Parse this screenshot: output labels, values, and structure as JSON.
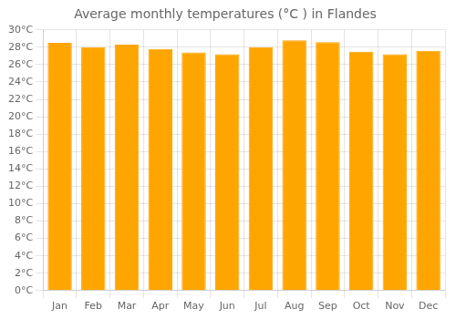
{
  "chart_data": {
    "type": "bar",
    "title": "Average monthly temperatures (°C ) in Flandes",
    "categories": [
      "Jan",
      "Feb",
      "Mar",
      "Apr",
      "May",
      "Jun",
      "Jul",
      "Aug",
      "Sep",
      "Oct",
      "Nov",
      "Dec"
    ],
    "values": [
      28.5,
      28.0,
      28.3,
      27.8,
      27.4,
      27.2,
      28.0,
      28.8,
      28.6,
      27.5,
      27.2,
      27.6
    ],
    "color": "#FFA500",
    "ylim": [
      0,
      30
    ],
    "yticks": [
      {
        "value": 0,
        "label": "0°C"
      },
      {
        "value": 2,
        "label": "2°C"
      },
      {
        "value": 4,
        "label": "4°C"
      },
      {
        "value": 6,
        "label": "6°C"
      },
      {
        "value": 8,
        "label": "8°C"
      },
      {
        "value": 10,
        "label": "10°C"
      },
      {
        "value": 12,
        "label": "12°C"
      },
      {
        "value": 14,
        "label": "14°C"
      },
      {
        "value": 16,
        "label": "16°C"
      },
      {
        "value": 18,
        "label": "18°C"
      },
      {
        "value": 20,
        "label": "20°C"
      },
      {
        "value": 22,
        "label": "22°C"
      },
      {
        "value": 24,
        "label": "24°C"
      },
      {
        "value": 26,
        "label": "26°C"
      },
      {
        "value": 28,
        "label": "28°C"
      },
      {
        "value": 30,
        "label": "30°C"
      }
    ],
    "grid": true
  }
}
